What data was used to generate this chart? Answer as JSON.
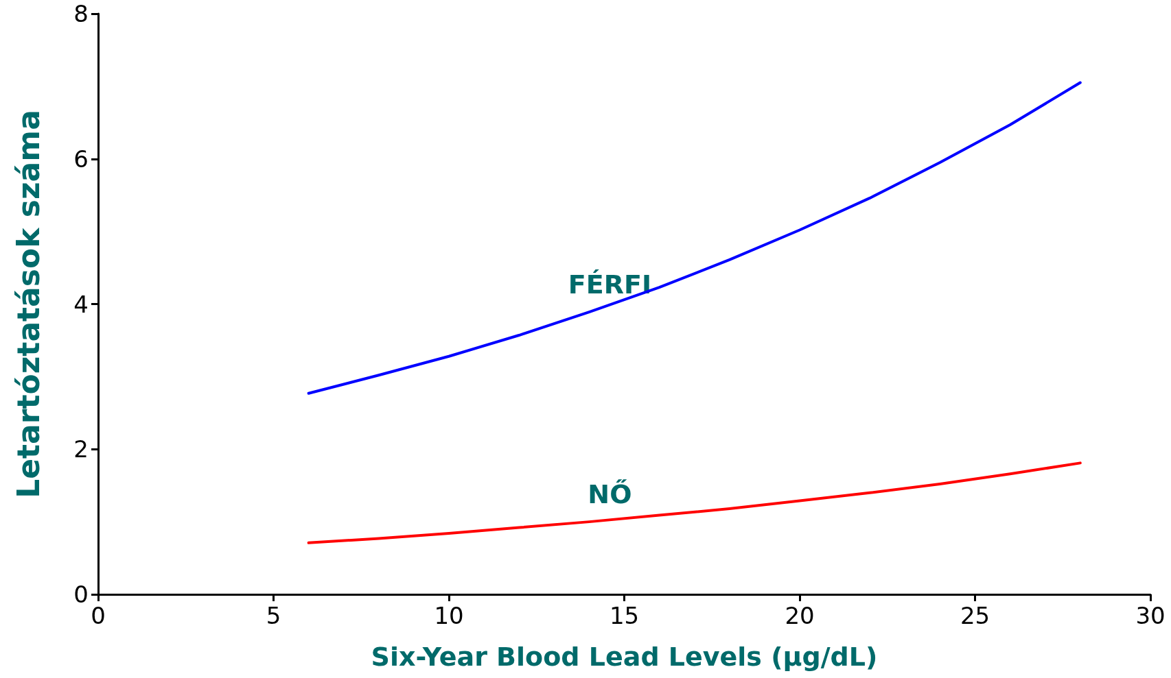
{
  "chart_data": {
    "type": "line",
    "xlabel": "Six-Year Blood Lead Levels (µg/dL)",
    "ylabel": "Letartóztatások száma",
    "x": [
      6,
      8,
      10,
      12,
      14,
      16,
      18,
      20,
      22,
      24,
      26,
      28
    ],
    "series": [
      {
        "name": "FÉRFI",
        "color": "#0000ff",
        "values": [
          2.77,
          3.02,
          3.28,
          3.57,
          3.89,
          4.23,
          4.61,
          5.02,
          5.46,
          5.95,
          6.47,
          7.05
        ]
      },
      {
        "name": "NŐ",
        "color": "#ff0000",
        "values": [
          0.71,
          0.77,
          0.84,
          0.92,
          1.0,
          1.09,
          1.18,
          1.29,
          1.4,
          1.52,
          1.66,
          1.81
        ]
      }
    ],
    "xlim": [
      0,
      30
    ],
    "xticks": [
      0,
      5,
      10,
      15,
      20,
      25,
      30
    ],
    "ylim": [
      0,
      8
    ],
    "yticks": [
      0,
      2,
      4,
      6,
      8
    ],
    "grid": false,
    "marker": "none",
    "line_style": "solid"
  }
}
